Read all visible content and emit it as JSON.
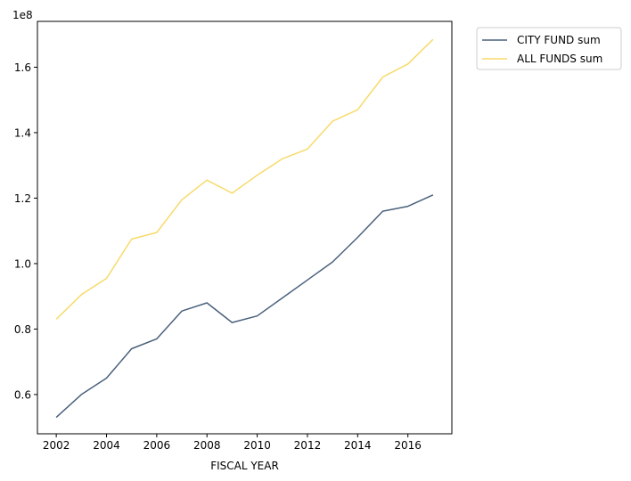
{
  "chart_data": {
    "type": "line",
    "title": "",
    "xlabel": "FISCAL YEAR",
    "ylabel": "",
    "offset_text": "1e8",
    "scale": 100000000,
    "x": [
      2002,
      2003,
      2004,
      2005,
      2006,
      2007,
      2008,
      2009,
      2010,
      2011,
      2012,
      2013,
      2014,
      2015,
      2016,
      2017
    ],
    "series": [
      {
        "name": "CITY FUND sum",
        "color": "#4a617c",
        "values": [
          53000000,
          60000000,
          65000000,
          74000000,
          77000000,
          85500000,
          88000000,
          82000000,
          84000000,
          89500000,
          95000000,
          100500000,
          108000000,
          116000000,
          117500000,
          121000000
        ]
      },
      {
        "name": "ALL FUNDS sum",
        "color": "#f7da6a",
        "values": [
          83000000,
          90500000,
          95500000,
          107500000,
          109500000,
          119500000,
          125500000,
          121500000,
          127000000,
          132000000,
          135000000,
          143500000,
          147000000,
          157000000,
          161000000,
          168500000
        ]
      }
    ],
    "xticks": [
      2002,
      2004,
      2006,
      2008,
      2010,
      2012,
      2014,
      2016
    ],
    "xtick_labels": [
      "2002",
      "2004",
      "2006",
      "2008",
      "2010",
      "2012",
      "2014",
      "2016"
    ],
    "yticks": [
      60000000,
      80000000,
      100000000,
      120000000,
      140000000,
      160000000
    ],
    "ytick_labels": [
      "0.6",
      "0.8",
      "1.0",
      "1.2",
      "1.4",
      "1.6"
    ],
    "xlim": [
      2001.25,
      2017.75
    ],
    "ylim": [
      48000000,
      174000000
    ],
    "grid": false,
    "legend_position": "outside-top-right"
  }
}
